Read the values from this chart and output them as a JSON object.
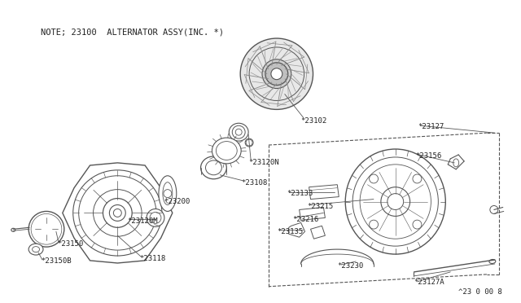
{
  "bg_color": "#ffffff",
  "fig_bg": "#ffffff",
  "title_note": "NOTE; 23100  ALTERNATOR ASSY(INC. *)",
  "diagram_id": "^23 0 00 8",
  "line_color": "#555555",
  "text_color": "#222222",
  "label_fontsize": 6.5,
  "note_fontsize": 7.5,
  "id_fontsize": 6.5,
  "labels": [
    [
      "*23102",
      370,
      148
    ],
    [
      "*23120N",
      305,
      200
    ],
    [
      "*23108",
      296,
      225
    ],
    [
      "*23200",
      200,
      248
    ],
    [
      "*23120M",
      155,
      272
    ],
    [
      "*23118",
      170,
      318
    ],
    [
      "*23150",
      68,
      300
    ],
    [
      "*23150B",
      48,
      322
    ],
    [
      "*23133",
      352,
      238
    ],
    [
      "*23215",
      378,
      254
    ],
    [
      "*23216",
      360,
      270
    ],
    [
      "*23135",
      340,
      285
    ],
    [
      "*23230",
      415,
      328
    ],
    [
      "*23127",
      515,
      155
    ],
    [
      "*23156",
      512,
      192
    ],
    [
      "*23127A",
      510,
      348
    ]
  ]
}
